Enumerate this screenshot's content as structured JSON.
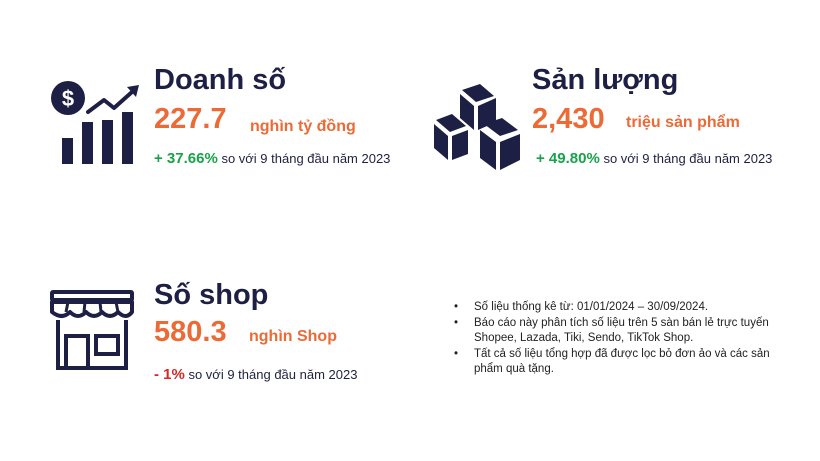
{
  "revenue": {
    "title": "Doanh số",
    "value": "227.7",
    "unit": "nghìn tỷ đồng",
    "change": "+ 37.66%",
    "change_text": "so với 9 tháng đầu năm 2023",
    "icon": "revenue-chart-icon"
  },
  "output": {
    "title": "Sản lượng",
    "value": "2,430",
    "unit": "triệu sản phẩm",
    "change": "+ 49.80%",
    "change_text": "so với 9 tháng đầu năm 2023",
    "icon": "boxes-icon"
  },
  "shops": {
    "title": "Số shop",
    "value": "580.3",
    "unit": "nghìn Shop",
    "change": "- 1%",
    "change_text": "so với 9 tháng đầu năm 2023",
    "icon": "shop-icon"
  },
  "notes": [
    "Số liệu thống kê từ: 01/01/2024 – 30/09/2024.",
    "Báo cáo này phân tích số liệu trên 5 sàn bán lẻ trực tuyến Shopee, Lazada, Tiki, Sendo, TikTok Shop.",
    "Tất cả số liệu tổng hợp đã được lọc bỏ đơn ảo và các sản phẩm quà tặng."
  ],
  "colors": {
    "title": "#1d1f45",
    "accent": "#ec6a35",
    "positive": "#17a34a",
    "negative": "#e02424"
  }
}
